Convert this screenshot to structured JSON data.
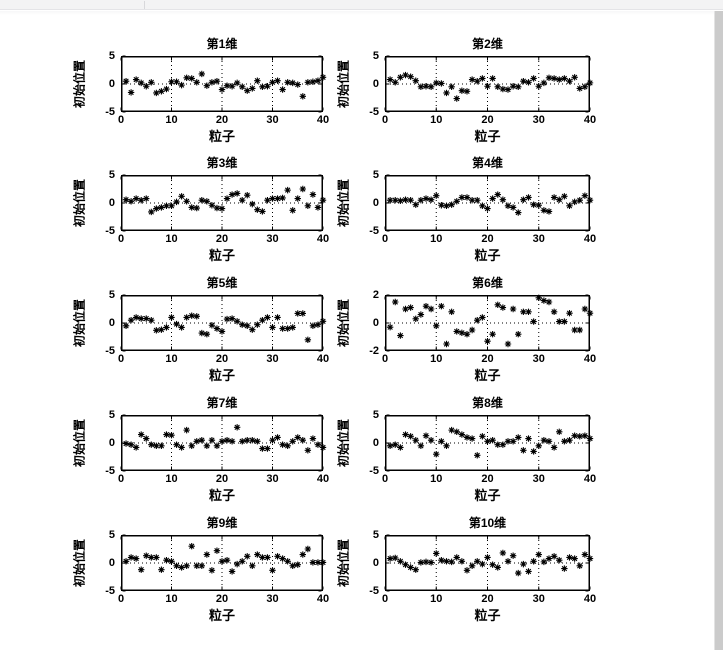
{
  "window": {
    "chrome_bar_color": "#f3f3f4",
    "scrollbar_color": "#cbcbcb",
    "background_color": "#ffffff"
  },
  "figure": {
    "marker_color": "#000000",
    "axis_color": "#000000",
    "marker_style": "asterisk"
  },
  "chart_data": {
    "type": "scatter",
    "shared": {
      "xlabel": "粒子",
      "ylabel": "初始位置",
      "xlim": [
        0,
        40
      ],
      "xticks": [
        0,
        10,
        20,
        30,
        40
      ],
      "grid": "dotted vertical lines at x=10,20,30 and dotted horizontal line at y=0",
      "x": [
        1,
        2,
        3,
        4,
        5,
        6,
        7,
        8,
        9,
        10,
        11,
        12,
        13,
        14,
        15,
        16,
        17,
        18,
        19,
        20,
        21,
        22,
        23,
        24,
        25,
        26,
        27,
        28,
        29,
        30,
        31,
        32,
        33,
        34,
        35,
        36,
        37,
        38,
        39,
        40
      ]
    },
    "subplots": [
      {
        "title": "第1维",
        "ylim": [
          -5,
          5
        ],
        "yticks": [
          -5,
          0,
          5
        ],
        "y": [
          0.5,
          -1.5,
          0.8,
          0.2,
          -0.4,
          0.3,
          -1.6,
          -1.3,
          -0.9,
          0.4,
          0.4,
          -0.2,
          1.1,
          1.0,
          0.3,
          1.8,
          -0.3,
          0.3,
          0.5,
          -1.0,
          -0.3,
          -0.4,
          0.2,
          -0.5,
          -1.2,
          -0.8,
          0.6,
          -0.5,
          -0.4,
          0.3,
          0.6,
          -1.0,
          0.3,
          0.2,
          -0.1,
          -2.2,
          0.3,
          0.4,
          0.6,
          1.2
        ]
      },
      {
        "title": "第2维",
        "ylim": [
          -5,
          5
        ],
        "yticks": [
          -5,
          0,
          5
        ],
        "y": [
          0.8,
          0.3,
          1.2,
          1.6,
          1.3,
          0.6,
          -0.5,
          -0.4,
          -0.5,
          0.2,
          0.1,
          -1.6,
          -0.5,
          -2.6,
          -1.2,
          -1.3,
          0.8,
          0.5,
          1.0,
          -0.4,
          1.0,
          -0.5,
          -0.9,
          -1.0,
          -0.4,
          -0.5,
          0.5,
          0.3,
          1.0,
          -0.4,
          0.2,
          1.1,
          1.0,
          0.8,
          1.0,
          0.5,
          1.2,
          -0.8,
          -0.5,
          0.2
        ]
      },
      {
        "title": "第3维",
        "ylim": [
          -5,
          5
        ],
        "yticks": [
          -5,
          0,
          5
        ],
        "y": [
          0.6,
          0.3,
          0.8,
          0.5,
          0.8,
          -1.6,
          -1.0,
          -0.8,
          -0.5,
          -0.5,
          0.2,
          1.2,
          0.3,
          -0.8,
          -0.9,
          0.5,
          0.3,
          -0.4,
          -0.9,
          -1.0,
          0.8,
          1.5,
          1.7,
          0.5,
          1.4,
          -0.2,
          -1.2,
          -1.5,
          0.5,
          0.8,
          0.8,
          0.9,
          2.3,
          -1.3,
          0.8,
          2.5,
          -0.5,
          1.5,
          -0.8,
          0.5
        ]
      },
      {
        "title": "第4维",
        "ylim": [
          -5,
          5
        ],
        "yticks": [
          -5,
          0,
          5
        ],
        "y": [
          0.5,
          0.5,
          0.4,
          0.6,
          0.5,
          -0.3,
          0.5,
          0.8,
          0.6,
          1.3,
          -0.4,
          -0.5,
          -0.3,
          0.3,
          1.0,
          1.0,
          0.5,
          0.5,
          -0.5,
          -1.0,
          0.8,
          1.5,
          0.6,
          -0.5,
          -0.8,
          -1.7,
          0.6,
          1.0,
          -0.3,
          -0.4,
          -1.3,
          -1.5,
          1.0,
          0.6,
          1.2,
          -0.5,
          0.2,
          0.5,
          1.3,
          0.5
        ]
      },
      {
        "title": "第5维",
        "ylim": [
          -5,
          5
        ],
        "yticks": [
          -5,
          0,
          5
        ],
        "y": [
          -0.5,
          0.5,
          1.0,
          0.8,
          0.8,
          0.5,
          -1.3,
          -1.2,
          -0.8,
          1.0,
          -0.2,
          -0.8,
          1.0,
          1.3,
          1.2,
          -1.8,
          -2.0,
          -0.4,
          -1.0,
          -1.5,
          0.7,
          0.8,
          0.3,
          -0.3,
          -0.5,
          -1.2,
          -0.3,
          0.5,
          1.0,
          -0.8,
          1.0,
          -1.0,
          -1.0,
          -0.8,
          1.7,
          1.7,
          -3.0,
          -0.5,
          -0.3,
          0.3
        ]
      },
      {
        "title": "第6维",
        "ylim": [
          -2,
          2
        ],
        "yticks": [
          -2,
          0,
          2
        ],
        "y": [
          -0.3,
          1.5,
          -0.9,
          1.0,
          1.1,
          0.3,
          0.6,
          1.2,
          1.0,
          -0.2,
          1.2,
          -1.5,
          0.8,
          -0.6,
          -0.7,
          -0.8,
          -0.5,
          0.2,
          0.4,
          -1.3,
          -0.8,
          1.3,
          1.1,
          -1.5,
          1.0,
          -0.8,
          0.8,
          0.8,
          0.1,
          1.8,
          1.6,
          1.5,
          0.8,
          0.1,
          0.1,
          0.7,
          -0.5,
          -0.5,
          1.0,
          0.7
        ]
      },
      {
        "title": "第7维",
        "ylim": [
          -5,
          5
        ],
        "yticks": [
          -5,
          0,
          5
        ],
        "y": [
          -0.1,
          -0.3,
          -0.8,
          1.5,
          0.8,
          -0.3,
          -0.5,
          -0.5,
          1.5,
          1.4,
          -0.3,
          -0.8,
          2.3,
          -0.5,
          0.3,
          0.5,
          -0.5,
          0.5,
          -0.5,
          0.3,
          0.5,
          0.3,
          2.8,
          0.3,
          0.5,
          0.5,
          0.3,
          -1.0,
          -1.0,
          0.5,
          1.0,
          -0.3,
          -0.5,
          0.3,
          1.0,
          0.5,
          -1.3,
          0.8,
          -0.3,
          -0.8
        ]
      },
      {
        "title": "第8维",
        "ylim": [
          -5,
          5
        ],
        "yticks": [
          -5,
          0,
          5
        ],
        "y": [
          -0.5,
          -0.3,
          -0.8,
          1.5,
          1.2,
          0.5,
          -0.5,
          1.3,
          0.5,
          -2.0,
          0.3,
          -0.5,
          2.3,
          2.0,
          1.5,
          1.0,
          0.8,
          -2.2,
          1.2,
          0.3,
          0.5,
          -0.3,
          -0.3,
          0.3,
          0.3,
          1.0,
          -1.3,
          0.8,
          -1.5,
          -0.5,
          0.5,
          0.3,
          -0.8,
          2.0,
          0.3,
          0.5,
          1.3,
          1.2,
          1.3,
          0.8
        ]
      },
      {
        "title": "第9维",
        "ylim": [
          -5,
          5
        ],
        "yticks": [
          -5,
          0,
          5
        ],
        "y": [
          0.3,
          1.0,
          0.8,
          -1.2,
          1.3,
          1.0,
          1.0,
          -1.2,
          0.5,
          0.3,
          -0.5,
          -0.8,
          -0.5,
          3.0,
          -0.5,
          -0.5,
          1.5,
          -1.3,
          2.2,
          0.3,
          0.5,
          -1.5,
          -0.2,
          0.3,
          1.2,
          -0.5,
          1.5,
          1.0,
          1.0,
          -1.3,
          1.2,
          0.8,
          0.3,
          -0.5,
          -0.3,
          1.5,
          2.5,
          0.1,
          0.1,
          0.1
        ]
      },
      {
        "title": "第10维",
        "ylim": [
          -5,
          5
        ],
        "yticks": [
          -5,
          0,
          5
        ],
        "y": [
          0.8,
          0.9,
          0.3,
          -0.3,
          -0.8,
          -1.2,
          0.1,
          0.2,
          0.1,
          1.7,
          0.5,
          0.3,
          0.2,
          1.0,
          0.3,
          -1.3,
          -0.5,
          0.3,
          -0.2,
          1.0,
          -0.3,
          -0.8,
          1.8,
          0.3,
          1.3,
          -1.8,
          -0.2,
          -1.5,
          0.3,
          1.5,
          0.2,
          0.8,
          1.2,
          0.5,
          -1.0,
          1.0,
          0.8,
          -0.5,
          1.5,
          0.8
        ]
      }
    ]
  }
}
